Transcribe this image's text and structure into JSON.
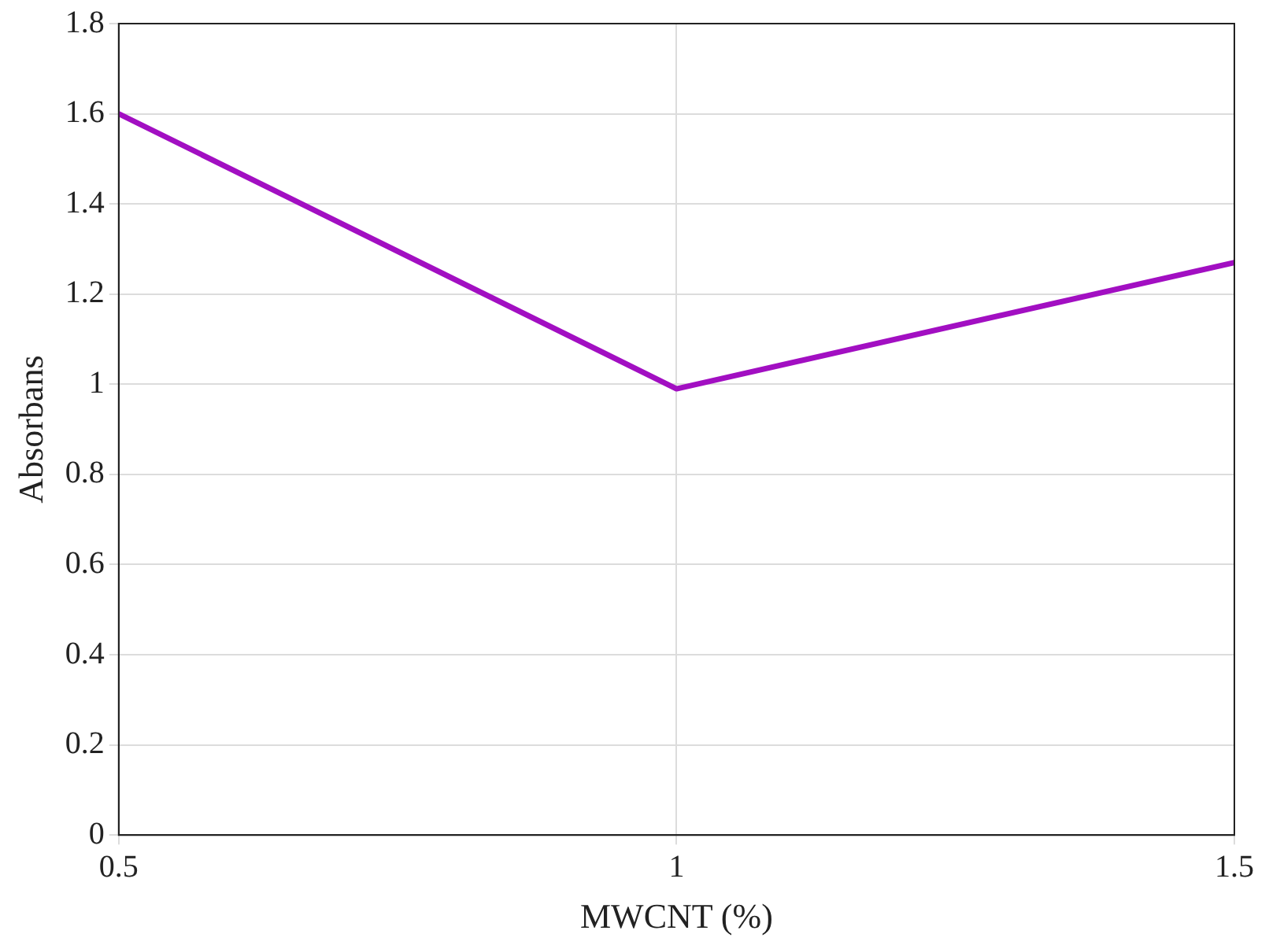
{
  "chart_data": {
    "type": "line",
    "xlabel": "MWCNT (%)",
    "ylabel": "Absorbans",
    "x": [
      0.5,
      1,
      1.5
    ],
    "series": [
      {
        "color": "#a20fc2",
        "values": [
          1.6,
          0.99,
          1.27
        ]
      }
    ],
    "xlim": [
      0.5,
      1.5
    ],
    "xticks": [
      0.5,
      1,
      1.5
    ],
    "ylim": [
      0,
      1.8
    ],
    "yticks": [
      0,
      0.2,
      0.4,
      0.6,
      0.8,
      1,
      1.2,
      1.4,
      1.6,
      1.8
    ],
    "grid": true,
    "legend": false,
    "marker": "none",
    "line_style": "solid"
  }
}
